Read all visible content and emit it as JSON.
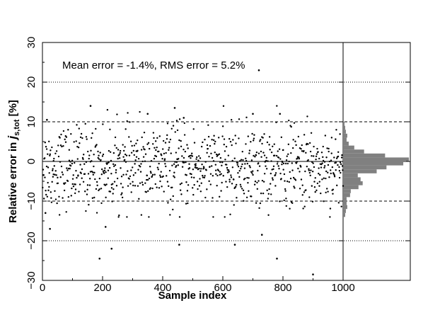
{
  "chart_data": {
    "type": "scatter",
    "xlabel": "Sample index",
    "ylabel_main": "Relative error in ",
    "ylabel_symbol": "j",
    "ylabel_subscript": "s,tot",
    "ylabel_unit": " [%]",
    "annotation": "Mean error = -1.4%,  RMS error =  5.2%",
    "xlim": [
      0,
      1000
    ],
    "ylim": [
      -30,
      30
    ],
    "x_ticks": [
      0,
      200,
      400,
      600,
      800,
      1000
    ],
    "y_ticks": [
      -30,
      -20,
      -10,
      0,
      10,
      20,
      30
    ],
    "x_tick_labels": [
      "0",
      "200",
      "400",
      "600",
      "800",
      "1000"
    ],
    "y_tick_labels": [
      "−30",
      "−20",
      "−10",
      "0",
      "10",
      "20",
      "30"
    ],
    "reference_lines": [
      {
        "y": 0,
        "style": "solid"
      },
      {
        "y": 10,
        "style": "dashed"
      },
      {
        "y": -10,
        "style": "dashed"
      },
      {
        "y": 20,
        "style": "dotted"
      },
      {
        "y": -20,
        "style": "dotted"
      }
    ],
    "outliers": [
      {
        "x": 10,
        "y": -13
      },
      {
        "x": 15,
        "y": 10.5
      },
      {
        "x": 25,
        "y": -17
      },
      {
        "x": 160,
        "y": 14
      },
      {
        "x": 190,
        "y": -24.5
      },
      {
        "x": 210,
        "y": -16.5
      },
      {
        "x": 230,
        "y": -22
      },
      {
        "x": 350,
        "y": 12
      },
      {
        "x": 440,
        "y": 13.5
      },
      {
        "x": 455,
        "y": -21
      },
      {
        "x": 470,
        "y": 11
      },
      {
        "x": 640,
        "y": -21
      },
      {
        "x": 700,
        "y": 12
      },
      {
        "x": 720,
        "y": 23
      },
      {
        "x": 730,
        "y": -18.5
      },
      {
        "x": 780,
        "y": -24.5
      },
      {
        "x": 790,
        "y": 12
      },
      {
        "x": 900,
        "y": -28.5
      }
    ],
    "bulk_points": {
      "count": 920,
      "mean": -1.4,
      "rms": 5.2
    },
    "histogram": {
      "orientation": "horizontal",
      "bin_width": 1,
      "bins": [
        {
          "y0": -14,
          "y1": -13,
          "count": 3
        },
        {
          "y0": -13,
          "y1": -12,
          "count": 4
        },
        {
          "y0": -12,
          "y1": -11,
          "count": 6
        },
        {
          "y0": -11,
          "y1": -10,
          "count": 5
        },
        {
          "y0": -10,
          "y1": -9,
          "count": 5
        },
        {
          "y0": -9,
          "y1": -8,
          "count": 10
        },
        {
          "y0": -8,
          "y1": -7,
          "count": 11
        },
        {
          "y0": -7,
          "y1": -6,
          "count": 22
        },
        {
          "y0": -6,
          "y1": -5,
          "count": 28
        },
        {
          "y0": -5,
          "y1": -4,
          "count": 25
        },
        {
          "y0": -4,
          "y1": -3,
          "count": 21
        },
        {
          "y0": -3,
          "y1": -2,
          "count": 48
        },
        {
          "y0": -2,
          "y1": -1,
          "count": 62
        },
        {
          "y0": -1,
          "y1": 0,
          "count": 86
        },
        {
          "y0": 0,
          "y1": 1,
          "count": 94
        },
        {
          "y0": 1,
          "y1": 2,
          "count": 60
        },
        {
          "y0": 2,
          "y1": 3,
          "count": 30
        },
        {
          "y0": 3,
          "y1": 4,
          "count": 16
        },
        {
          "y0": 4,
          "y1": 5,
          "count": 8
        },
        {
          "y0": 5,
          "y1": 6,
          "count": 5
        },
        {
          "y0": 6,
          "y1": 7,
          "count": 6
        },
        {
          "y0": 7,
          "y1": 8,
          "count": 4
        },
        {
          "y0": 8,
          "y1": 9,
          "count": 3
        },
        {
          "y0": 9,
          "y1": 10,
          "count": 2
        }
      ]
    }
  }
}
